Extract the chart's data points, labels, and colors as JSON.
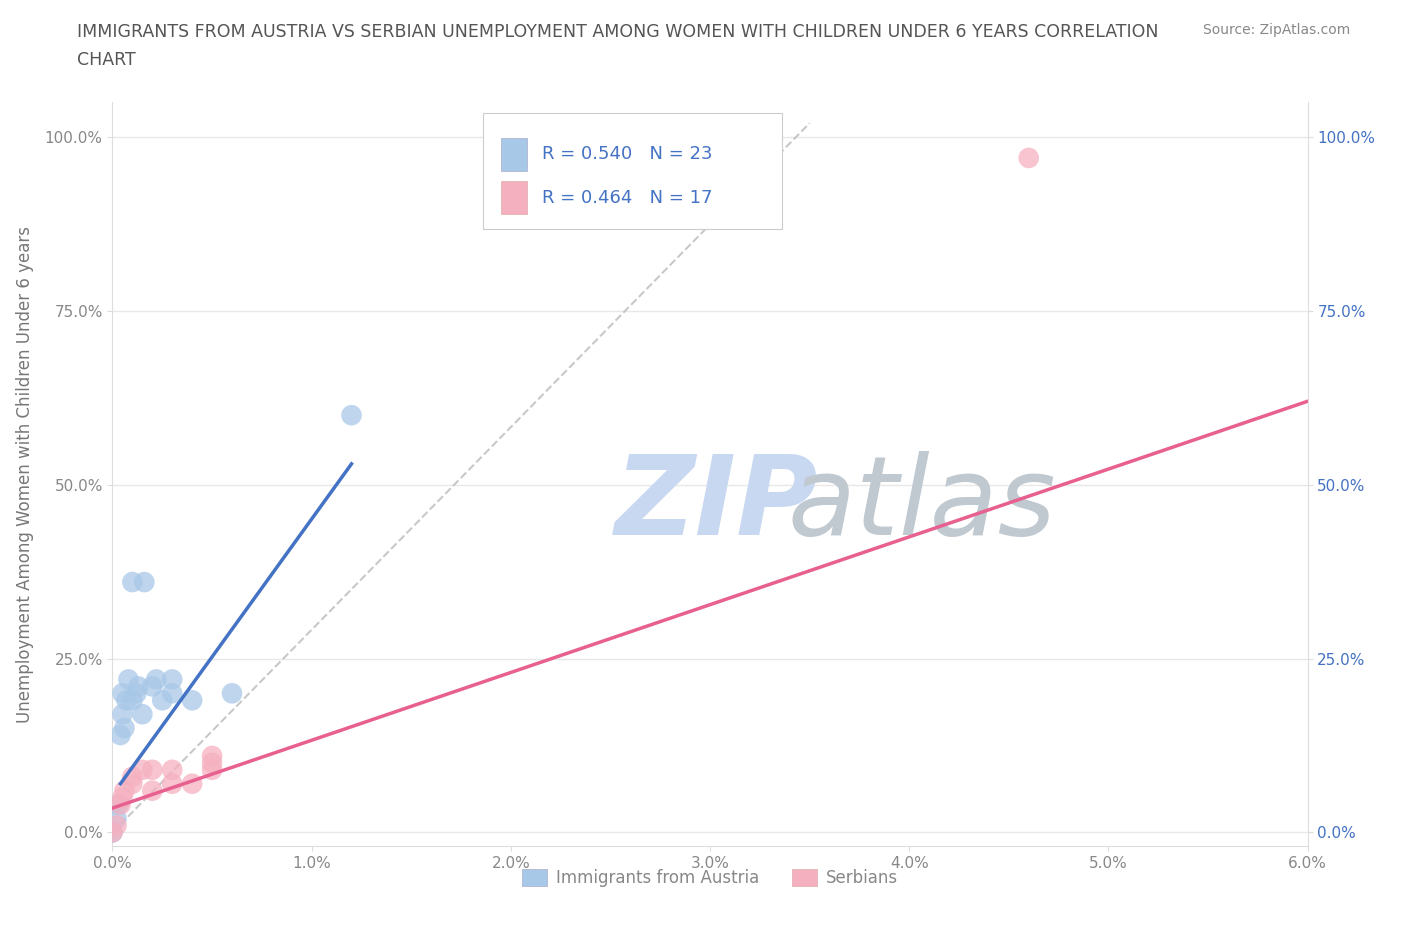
{
  "title_line1": "IMMIGRANTS FROM AUSTRIA VS SERBIAN UNEMPLOYMENT AMONG WOMEN WITH CHILDREN UNDER 6 YEARS CORRELATION",
  "title_line2": "CHART",
  "source": "Source: ZipAtlas.com",
  "ylabel": "Unemployment Among Women with Children Under 6 years",
  "xlim": [
    0,
    0.06
  ],
  "ylim": [
    -0.02,
    1.05
  ],
  "yticks": [
    0.0,
    0.25,
    0.5,
    0.75,
    1.0
  ],
  "ytick_labels": [
    "0.0%",
    "25.0%",
    "50.0%",
    "75.0%",
    "100.0%"
  ],
  "xticks": [
    0.0,
    0.01,
    0.02,
    0.03,
    0.04,
    0.05,
    0.06
  ],
  "xtick_labels": [
    "0.0%",
    "1.0%",
    "2.0%",
    "3.0%",
    "4.0%",
    "5.0%",
    "6.0%"
  ],
  "austria_R": "0.540",
  "austria_N": "23",
  "serbian_R": "0.464",
  "serbian_N": "17",
  "austria_color": "#a8c8e8",
  "serbian_color": "#f5b0c0",
  "austria_line_color": "#4472c4",
  "serbian_line_color": "#e86090",
  "diagonal_color": "#bbbbbb",
  "austria_x": [
    0.0,
    0.0002,
    0.0003,
    0.0004,
    0.0005,
    0.0005,
    0.0006,
    0.0007,
    0.0008,
    0.001,
    0.001,
    0.0012,
    0.0013,
    0.0015,
    0.0016,
    0.002,
    0.0022,
    0.0025,
    0.003,
    0.003,
    0.004,
    0.006,
    0.012
  ],
  "austria_y": [
    0.0,
    0.02,
    0.04,
    0.14,
    0.17,
    0.2,
    0.15,
    0.19,
    0.22,
    0.19,
    0.36,
    0.2,
    0.21,
    0.17,
    0.36,
    0.21,
    0.22,
    0.19,
    0.2,
    0.22,
    0.19,
    0.2,
    0.6
  ],
  "serbian_x": [
    0.0,
    0.0002,
    0.0004,
    0.0005,
    0.0006,
    0.001,
    0.001,
    0.0015,
    0.002,
    0.002,
    0.003,
    0.003,
    0.004,
    0.005,
    0.005,
    0.005,
    0.046
  ],
  "serbian_y": [
    0.0,
    0.01,
    0.04,
    0.05,
    0.06,
    0.07,
    0.08,
    0.09,
    0.06,
    0.09,
    0.07,
    0.09,
    0.07,
    0.09,
    0.1,
    0.11,
    0.97
  ],
  "austria_trend_x": [
    0.0004,
    0.012
  ],
  "austria_trend_y": [
    0.07,
    0.53
  ],
  "serbian_trend_x": [
    0.0,
    0.06
  ],
  "serbian_trend_y": [
    0.035,
    0.62
  ],
  "legend_color_blue": "#4472c4",
  "bg_color": "#ffffff",
  "grid_color": "#e8e8e8",
  "title_color": "#555555",
  "axis_label_color": "#777777",
  "tick_color": "#888888",
  "watermark_zip_color": "#c8d8f0",
  "watermark_atlas_color": "#c0c8d0"
}
